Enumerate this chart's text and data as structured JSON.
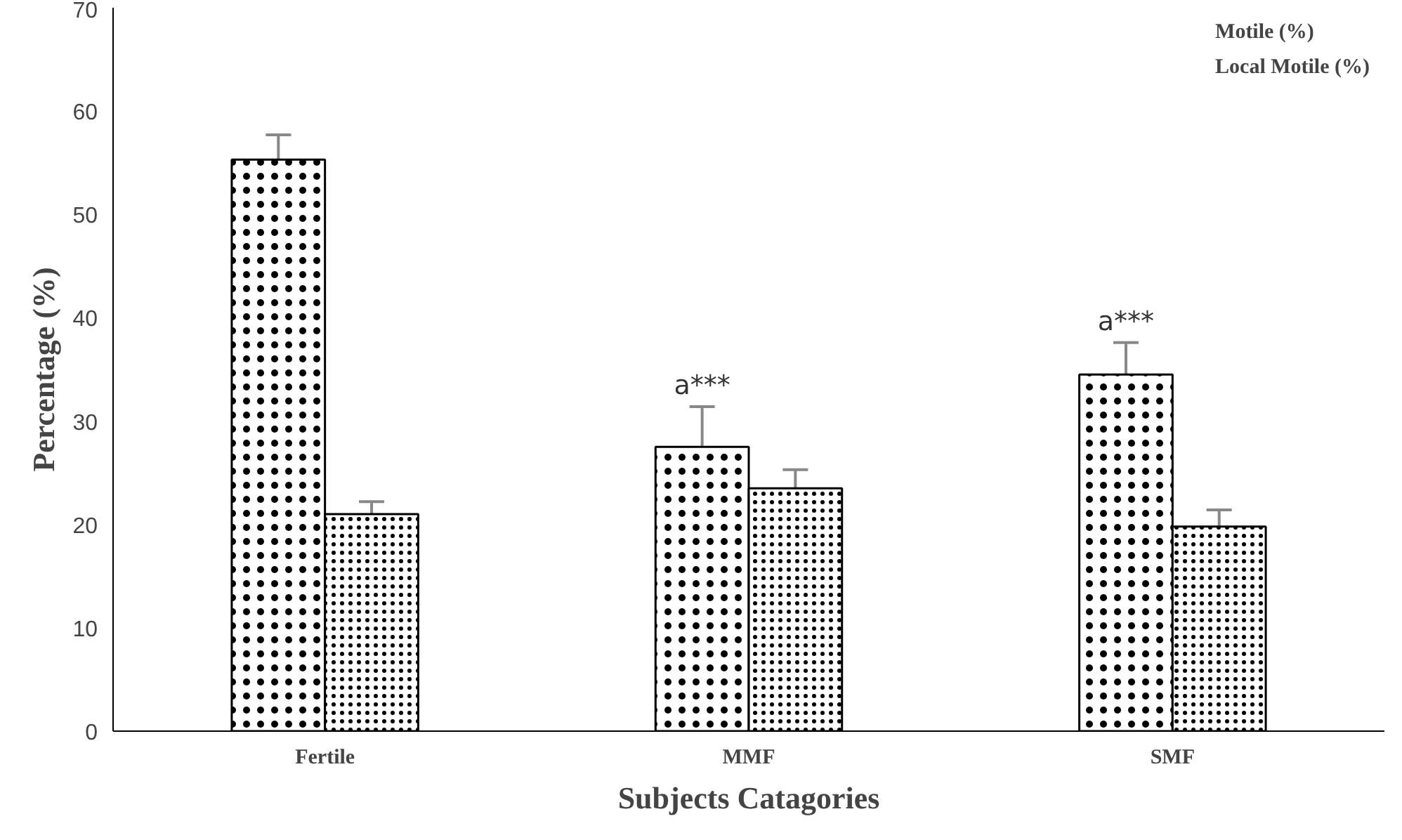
{
  "chart_data": {
    "type": "bar",
    "xlabel": "Subjects Catagories",
    "ylabel": "Percentage (%)",
    "categories": [
      "Fertile",
      "MMF",
      "SMF"
    ],
    "series": [
      {
        "name": "Motile (%)",
        "color": "#ffffff",
        "values": [
          55.3,
          27.5,
          34.5
        ],
        "errors": [
          2.4,
          3.9,
          3.1
        ]
      },
      {
        "name": "Local Motile (%)",
        "color": "#ffffff",
        "values": [
          21.0,
          23.5,
          19.8
        ],
        "errors": [
          1.2,
          1.8,
          1.6
        ]
      }
    ],
    "annotations": [
      {
        "text": "a***",
        "x": "MMF",
        "y": 27.5
      },
      {
        "text": "a***",
        "x": "SMF",
        "y": 34.5
      }
    ],
    "ylim": [
      0,
      70
    ],
    "yticks": [
      0,
      10,
      20,
      30,
      40,
      50,
      60,
      70
    ],
    "grid": false,
    "legend": "top right"
  }
}
